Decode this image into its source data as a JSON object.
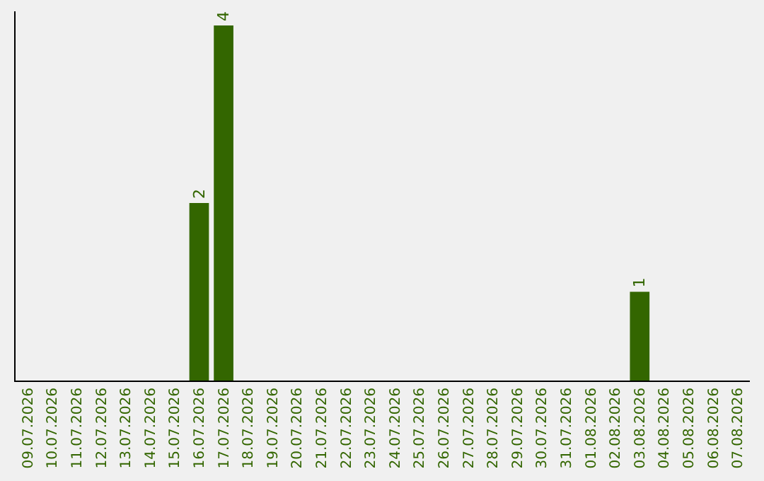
{
  "chart_data": {
    "type": "bar",
    "categories": [
      "09.07.2026",
      "10.07.2026",
      "11.07.2026",
      "12.07.2026",
      "13.07.2026",
      "14.07.2026",
      "15.07.2026",
      "16.07.2026",
      "17.07.2026",
      "18.07.2026",
      "19.07.2026",
      "20.07.2026",
      "21.07.2026",
      "22.07.2026",
      "23.07.2026",
      "24.07.2026",
      "25.07.2026",
      "26.07.2026",
      "27.07.2026",
      "28.07.2026",
      "29.07.2026",
      "30.07.2026",
      "31.07.2026",
      "01.08.2026",
      "02.08.2026",
      "03.08.2026",
      "04.08.2026",
      "05.08.2026",
      "06.08.2026",
      "07.08.2026"
    ],
    "values": [
      0,
      0,
      0,
      0,
      0,
      0,
      0,
      2,
      4,
      0,
      0,
      0,
      0,
      0,
      0,
      0,
      0,
      0,
      0,
      0,
      0,
      0,
      0,
      0,
      0,
      1,
      0,
      0,
      0,
      0
    ],
    "value_labels": [
      null,
      null,
      null,
      null,
      null,
      null,
      null,
      "2",
      "4",
      null,
      null,
      null,
      null,
      null,
      null,
      null,
      null,
      null,
      null,
      null,
      null,
      null,
      null,
      null,
      null,
      "1",
      null,
      null,
      null,
      null
    ],
    "color": "#336600"
  }
}
